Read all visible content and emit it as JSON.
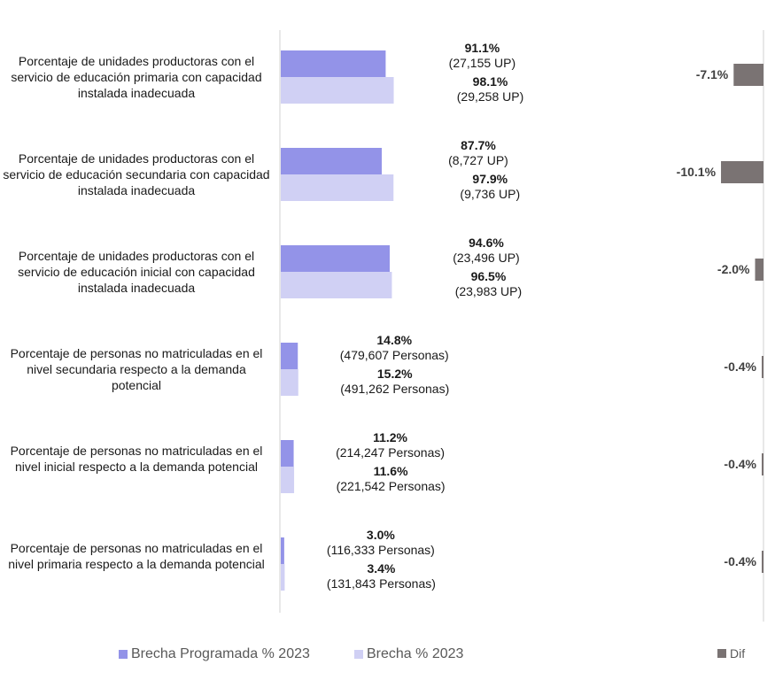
{
  "chart_data": {
    "type": "bar",
    "orientation": "horizontal",
    "categories": [
      "Porcentaje de unidades productoras con el servicio de educación primaria con capacidad instalada inadecuada",
      "Porcentaje de unidades productoras con el servicio de educación secundaria con capacidad instalada inadecuada",
      "Porcentaje de unidades productoras con el servicio de educación inicial con capacidad instalada inadecuada",
      "Porcentaje de personas no matriculadas en el nivel secundaria respecto a la demanda potencial",
      "Porcentaje de personas no matriculadas en el nivel inicial respecto a la demanda potencial",
      "Porcentaje de personas no matriculadas en el nivel primaria respecto a la demanda potencial"
    ],
    "series": [
      {
        "name": "Brecha Programada % 2023",
        "color": "#9393e8",
        "values": [
          91.1,
          87.7,
          94.6,
          14.8,
          11.2,
          3.0
        ],
        "labels": [
          "91.1%",
          "87.7%",
          "94.6%",
          "14.8%",
          "11.2%",
          "3.0%"
        ],
        "sublabels": [
          "(27,155 UP)",
          "(8,727 UP)",
          "(23,496 UP)",
          "(479,607 Personas)",
          "(214,247 Personas)",
          "(116,333 Personas)"
        ]
      },
      {
        "name": "Brecha % 2023",
        "color": "#d0d0f4",
        "values": [
          98.1,
          97.9,
          96.5,
          15.2,
          11.6,
          3.4
        ],
        "labels": [
          "98.1%",
          "97.9%",
          "96.5%",
          "15.2%",
          "11.6%",
          "3.4%"
        ],
        "sublabels": [
          "(29,258 UP)",
          "(9,736 UP)",
          "(23,983 UP)",
          "(491,262 Personas)",
          "(221,542 Personas)",
          "(131,843 Personas)"
        ]
      }
    ],
    "dif": {
      "name": "Dif",
      "color": "#7a7373",
      "values": [
        -7.1,
        -10.1,
        -2.0,
        -0.4,
        -0.4,
        -0.4
      ],
      "labels": [
        "-7.1%",
        "-10.1%",
        "-2.0%",
        "-0.4%",
        "-0.4%",
        "-0.4%"
      ]
    },
    "xlim": [
      0,
      100
    ],
    "dif_xlim": [
      -10.1,
      0
    ],
    "grid": false,
    "legend_position": "bottom"
  }
}
